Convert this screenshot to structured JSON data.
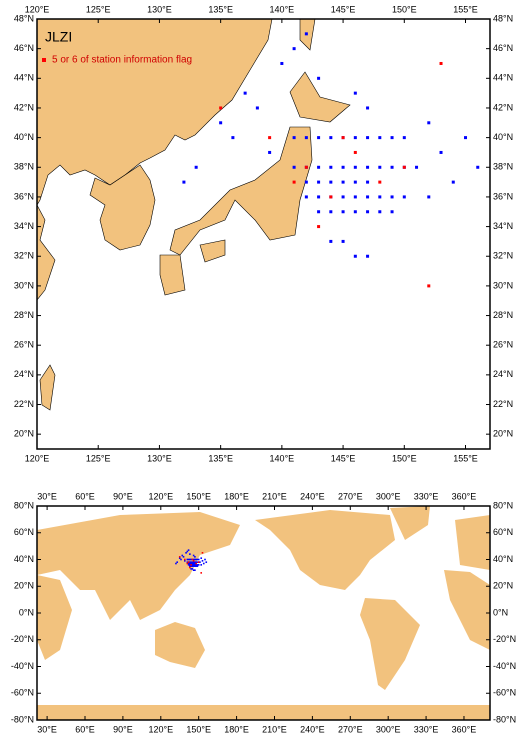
{
  "maps": [
    {
      "title": "JLZI",
      "legend": "5 or 6 of station information flag",
      "xlim": [
        120,
        157
      ],
      "ylim": [
        19,
        48
      ],
      "xticks": [
        {
          "value": 120,
          "label": "120°E"
        },
        {
          "value": 125,
          "label": "125°E"
        },
        {
          "value": 130,
          "label": "130°E"
        },
        {
          "value": 135,
          "label": "135°E"
        },
        {
          "value": 140,
          "label": "140°E"
        },
        {
          "value": 145,
          "label": "145°E"
        },
        {
          "value": 150,
          "label": "150°E"
        },
        {
          "value": 155,
          "label": "155°E"
        }
      ],
      "yticks": [
        {
          "value": 20,
          "label": "20°N"
        },
        {
          "value": 22,
          "label": "22°N"
        },
        {
          "value": 24,
          "label": "24°N"
        },
        {
          "value": 26,
          "label": "26°N"
        },
        {
          "value": 28,
          "label": "28°N"
        },
        {
          "value": 30,
          "label": "30°N"
        },
        {
          "value": 32,
          "label": "32°N"
        },
        {
          "value": 34,
          "label": "34°N"
        },
        {
          "value": 36,
          "label": "36°N"
        },
        {
          "value": 38,
          "label": "38°N"
        },
        {
          "value": 40,
          "label": "40°N"
        },
        {
          "value": 42,
          "label": "42°N"
        },
        {
          "value": 44,
          "label": "44°N"
        },
        {
          "value": 46,
          "label": "46°N"
        },
        {
          "value": 48,
          "label": "48°N"
        }
      ]
    },
    {
      "xlim": [
        22,
        380.6
      ],
      "ylim": [
        -80,
        80
      ],
      "xticks": [
        {
          "value": 30,
          "label": "30°E"
        },
        {
          "value": 60,
          "label": "60°E"
        },
        {
          "value": 90,
          "label": "90°E"
        },
        {
          "value": 120,
          "label": "120°E"
        },
        {
          "value": 150,
          "label": "150°E"
        },
        {
          "value": 180,
          "label": "180°E"
        },
        {
          "value": 210,
          "label": "210°E"
        },
        {
          "value": 240,
          "label": "240°E"
        },
        {
          "value": 270,
          "label": "270°E"
        },
        {
          "value": 300,
          "label": "300°E"
        },
        {
          "value": 330,
          "label": "330°E"
        },
        {
          "value": 360,
          "label": "360°E"
        }
      ],
      "yticks": [
        {
          "value": -80,
          "label": "-80°N"
        },
        {
          "value": -60,
          "label": "-60°N"
        },
        {
          "value": -40,
          "label": "-40°N"
        },
        {
          "value": -20,
          "label": "-20°N"
        },
        {
          "value": 0,
          "label": "0°N"
        },
        {
          "value": 20,
          "label": "20°N"
        },
        {
          "value": 40,
          "label": "40°N"
        },
        {
          "value": 60,
          "label": "60°N"
        },
        {
          "value": 80,
          "label": "80°N"
        }
      ]
    }
  ],
  "stations": [
    {
      "color": "#0000ff",
      "x": [
        141,
        142,
        143,
        144,
        145,
        146,
        147,
        148,
        149,
        150,
        141,
        142,
        143,
        144,
        145,
        146,
        147,
        148,
        149,
        150,
        151,
        142,
        143,
        144,
        145,
        146,
        147,
        148,
        149,
        150,
        152,
        143,
        144,
        145,
        146,
        147,
        148,
        149,
        142,
        143,
        144,
        145,
        146,
        147,
        144,
        145,
        146,
        147,
        140,
        141,
        142,
        143,
        135,
        136,
        137,
        138,
        139,
        133,
        132,
        155,
        156,
        153,
        154,
        147,
        146,
        152
      ],
      "y": [
        40,
        40,
        40,
        40,
        40,
        40,
        40,
        40,
        40,
        40,
        38,
        38,
        38,
        38,
        38,
        38,
        38,
        38,
        38,
        38,
        38,
        36,
        36,
        36,
        36,
        36,
        36,
        36,
        36,
        36,
        36,
        35,
        35,
        35,
        35,
        35,
        35,
        35,
        37,
        37,
        37,
        37,
        37,
        37,
        33,
        33,
        32,
        32,
        45,
        46,
        47,
        44,
        41,
        40,
        43,
        42,
        39,
        38,
        37,
        40,
        38,
        39,
        37,
        42,
        43,
        41
      ]
    },
    {
      "color": "#ff0000",
      "x": [
        141,
        142,
        144,
        146,
        148,
        150,
        135,
        139,
        153,
        152,
        143,
        145
      ],
      "y": [
        37,
        38,
        36,
        39,
        37,
        38,
        42,
        40,
        45,
        30,
        34,
        40
      ]
    }
  ]
}
